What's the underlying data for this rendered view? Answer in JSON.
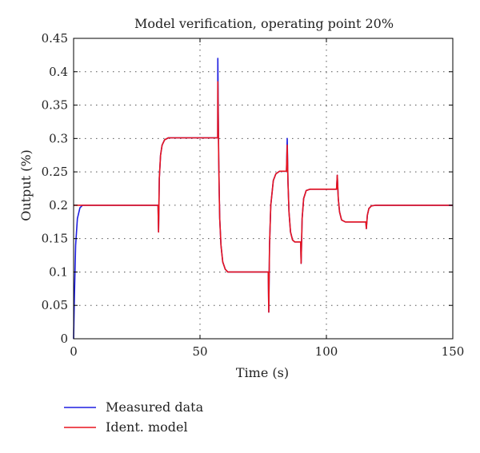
{
  "chart_data": {
    "type": "line",
    "title": "Model verification, operating point 20%",
    "xlabel": "Time (s)",
    "ylabel": "Output (%)",
    "xlim": [
      0,
      150
    ],
    "ylim": [
      0,
      0.45
    ],
    "xticks": [
      0,
      50,
      100,
      150
    ],
    "xtick_labels": [
      "0",
      "50",
      "100",
      "150"
    ],
    "yticks": [
      0,
      0.05,
      0.1,
      0.15,
      0.2,
      0.25,
      0.3,
      0.35,
      0.4,
      0.45
    ],
    "ytick_labels": [
      "0",
      "0.05",
      "0.1",
      "0.15",
      "0.2",
      "0.25",
      "0.3",
      "0.35",
      "0.4",
      "0.45"
    ],
    "grid": true,
    "legend_position": "bottom-left, below plot",
    "series": [
      {
        "name": "Measured data",
        "color": "#1f1fe0",
        "x": [
          0,
          0.3,
          0.8,
          1.5,
          2.5,
          3.5,
          4.5,
          33.4,
          33.6,
          33.9,
          34.4,
          35.0,
          36.0,
          37.5,
          57.0,
          57.05,
          57.4,
          57.6,
          57.8,
          58.3,
          59.0,
          60.0,
          61.0,
          77.0,
          77.2,
          77.5,
          78.0,
          79.0,
          80.0,
          81.5,
          84.2,
          84.5,
          84.8,
          85.2,
          85.8,
          86.6,
          87.5,
          89.8,
          90.0,
          90.4,
          91.0,
          92.0,
          93.5,
          104.0,
          104.3,
          104.7,
          105.2,
          106.0,
          107.5,
          115.6,
          115.8,
          116.2,
          116.8,
          117.8,
          119.5,
          150
        ],
        "y": [
          0,
          0.06,
          0.14,
          0.18,
          0.196,
          0.2,
          0.2,
          0.2,
          0.16,
          0.24,
          0.275,
          0.29,
          0.298,
          0.301,
          0.301,
          0.42,
          0.27,
          0.22,
          0.18,
          0.14,
          0.115,
          0.104,
          0.1,
          0.1,
          0.04,
          0.14,
          0.2,
          0.237,
          0.247,
          0.251,
          0.251,
          0.3,
          0.235,
          0.19,
          0.16,
          0.148,
          0.145,
          0.145,
          0.113,
          0.18,
          0.21,
          0.222,
          0.224,
          0.224,
          0.245,
          0.21,
          0.19,
          0.178,
          0.175,
          0.175,
          0.165,
          0.185,
          0.195,
          0.199,
          0.2,
          0.2
        ]
      },
      {
        "name": "Ident. model",
        "color": "#e8141e",
        "x": [
          0,
          0.01,
          4.5,
          33.4,
          33.6,
          33.9,
          34.4,
          35.0,
          36.0,
          37.5,
          57.0,
          57.05,
          57.4,
          57.6,
          57.8,
          58.3,
          59.0,
          60.0,
          61.0,
          77.0,
          77.2,
          77.5,
          78.0,
          79.0,
          80.0,
          81.5,
          84.2,
          84.5,
          84.8,
          85.2,
          85.8,
          86.6,
          87.5,
          89.8,
          90.0,
          90.4,
          91.0,
          92.0,
          93.5,
          104.0,
          104.3,
          104.7,
          105.2,
          106.0,
          107.5,
          115.6,
          115.8,
          116.2,
          116.8,
          117.8,
          119.5,
          150
        ],
        "y": [
          0.2,
          0.2,
          0.2,
          0.2,
          0.16,
          0.24,
          0.275,
          0.29,
          0.298,
          0.301,
          0.301,
          0.385,
          0.27,
          0.22,
          0.18,
          0.14,
          0.115,
          0.104,
          0.1,
          0.1,
          0.04,
          0.14,
          0.2,
          0.237,
          0.247,
          0.251,
          0.251,
          0.29,
          0.235,
          0.19,
          0.16,
          0.148,
          0.145,
          0.145,
          0.113,
          0.18,
          0.21,
          0.222,
          0.224,
          0.224,
          0.245,
          0.21,
          0.19,
          0.178,
          0.175,
          0.175,
          0.165,
          0.185,
          0.195,
          0.199,
          0.2,
          0.2
        ]
      }
    ]
  }
}
